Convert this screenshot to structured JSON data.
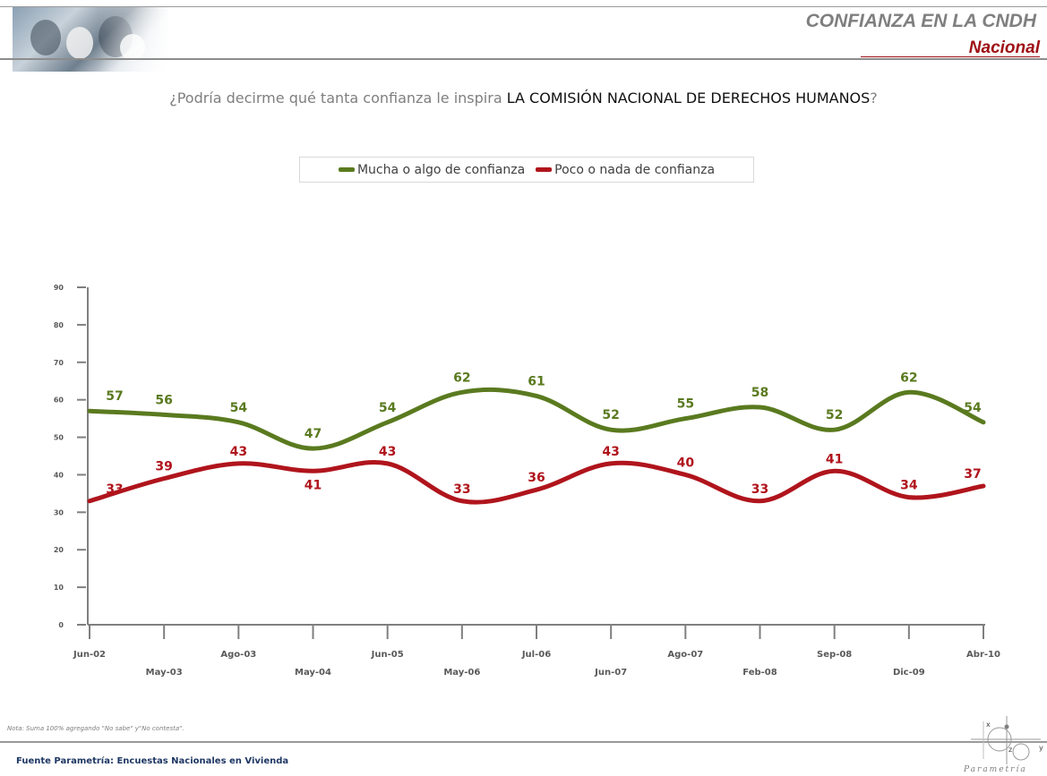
{
  "header": {
    "title": "CONFIANZA EN LA CNDH",
    "subtitle": "Nacional"
  },
  "question": {
    "prefix": "¿Podría decirme qué tanta confianza le inspira ",
    "emphasis": "LA COMISIÓN NACIONAL DE DERECHOS HUMANOS",
    "suffix": "?"
  },
  "colors": {
    "series_green": "#5a7a1f",
    "series_red": "#b0141c",
    "axis": "#7f7f7f",
    "tick_text": "#595959"
  },
  "chart_data": {
    "type": "line",
    "x": [
      "Jun-02",
      "May-03",
      "Ago-03",
      "May-04",
      "Jun-05",
      "May-06",
      "Jul-06",
      "Jun-07",
      "Ago-07",
      "Feb-08",
      "Sep-08",
      "Dic-09",
      "Abr-10"
    ],
    "series": [
      {
        "name": "Mucha o algo de confianza",
        "color": "#5a7a1f",
        "values": [
          57,
          56,
          54,
          47,
          54,
          62,
          61,
          52,
          55,
          58,
          52,
          62,
          54
        ]
      },
      {
        "name": "Poco o nada de confianza",
        "color": "#b0141c",
        "values": [
          33,
          39,
          43,
          41,
          43,
          33,
          36,
          43,
          40,
          33,
          41,
          34,
          37
        ]
      }
    ],
    "ylim": [
      0,
      90
    ],
    "yticks": [
      0,
      10,
      20,
      30,
      40,
      50,
      60,
      70,
      80,
      90
    ],
    "legend": "top-center",
    "grid": false
  },
  "note": "Nota: Suma 100% agregando \"No sabe\" y\"No contesta\".",
  "source": "Fuente Parametría: Encuestas Nacionales en Vivienda",
  "brand": {
    "name": "Parametría",
    "logo_letters": [
      "x",
      "z",
      "y"
    ]
  }
}
